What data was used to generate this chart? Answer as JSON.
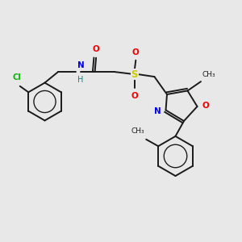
{
  "bg_color": "#e8e8e8",
  "atom_colors": {
    "C": "#1a1a1a",
    "N": "#0000ee",
    "O": "#ee0000",
    "S": "#cccc00",
    "Cl": "#00bb00",
    "H": "#008888"
  },
  "bond_color": "#1a1a1a",
  "lw": 1.4
}
